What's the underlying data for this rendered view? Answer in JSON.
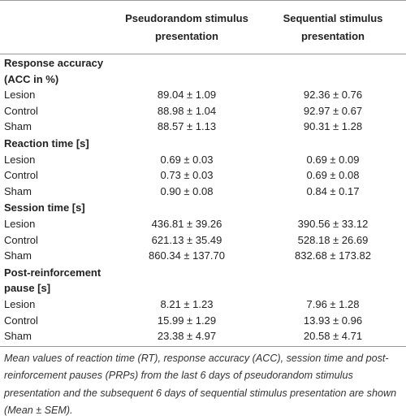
{
  "table": {
    "columns": [
      "Pseudorandom stimulus presentation",
      "Sequential stimulus presentation"
    ],
    "sections": [
      {
        "title": "Response accuracy (ACC in %)",
        "rows": [
          [
            "Lesion",
            "89.04 ± 1.09",
            "92.36 ± 0.76"
          ],
          [
            "Control",
            "88.98 ± 1.04",
            "92.97 ± 0.67"
          ],
          [
            "Sham",
            "88.57 ± 1.13",
            "90.31 ± 1.28"
          ]
        ]
      },
      {
        "title": "Reaction time [s]",
        "rows": [
          [
            "Lesion",
            "0.69 ± 0.03",
            "0.69 ± 0.09"
          ],
          [
            "Control",
            "0.73 ± 0.03",
            "0.69 ± 0.08"
          ],
          [
            "Sham",
            "0.90 ± 0.08",
            "0.84 ± 0.17"
          ]
        ]
      },
      {
        "title": "Session time [s]",
        "rows": [
          [
            "Lesion",
            "436.81 ± 39.26",
            "390.56 ± 33.12"
          ],
          [
            "Control",
            "621.13 ± 35.49",
            "528.18 ± 26.69"
          ],
          [
            "Sham",
            "860.34 ± 137.70",
            "832.68 ± 173.82"
          ]
        ]
      },
      {
        "title": "Post-reinforcement pause [s]",
        "rows": [
          [
            "Lesion",
            "8.21 ± 1.23",
            "7.96 ± 1.28"
          ],
          [
            "Control",
            "15.99 ± 1.29",
            "13.93 ± 0.96"
          ],
          [
            "Sham",
            "23.38 ± 4.97",
            "20.58 ± 4.71"
          ]
        ]
      }
    ],
    "caption": "Mean values of reaction time (RT), response accuracy (ACC), session time and post-reinforcement pauses (PRPs) from the last 6 days of pseudorandom stimulus presentation and the subsequent 6 days of sequential stimulus presentation are shown (Mean ± SEM)."
  }
}
